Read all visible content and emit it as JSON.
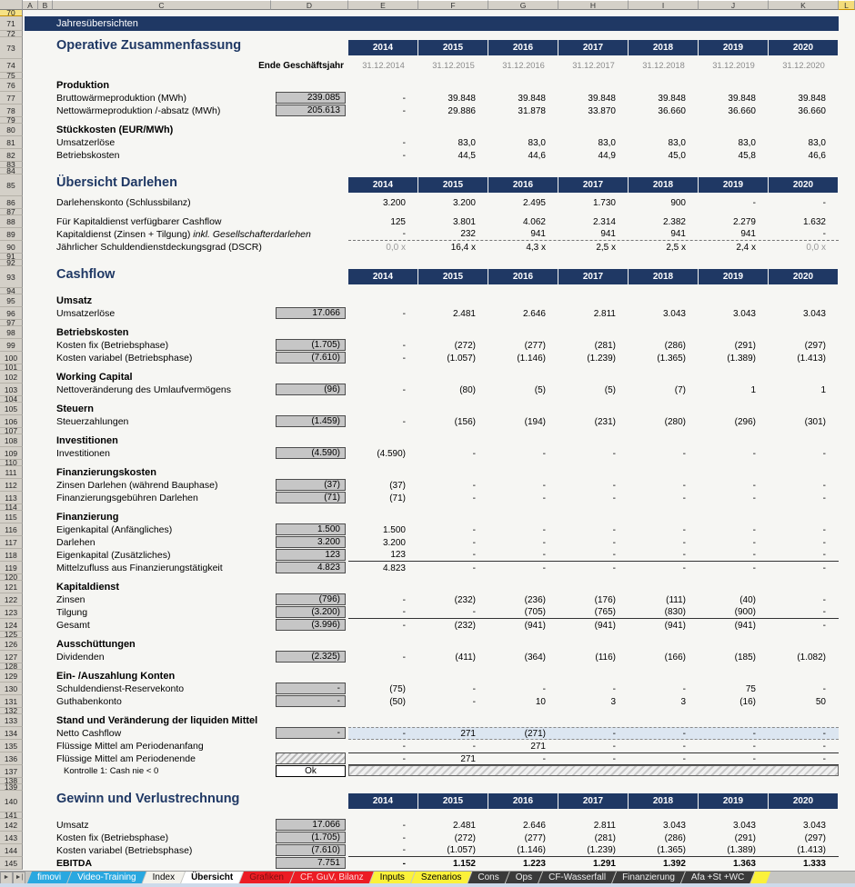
{
  "column_headers": [
    "A",
    "B",
    "C",
    "D",
    "E",
    "F",
    "G",
    "H",
    "I",
    "J",
    "K",
    "L"
  ],
  "selected_column": "L",
  "selected_row": 70,
  "colors": {
    "navy": "#1F3864",
    "box_gray": "#C6C6C6",
    "highlight_blue": "#DCE6F1",
    "tab_blue": "#29A8E0",
    "tab_red": "#EC1C24",
    "tab_yellow": "#FBF13A",
    "tab_dark": "#3A3A3A"
  },
  "sheet": {
    "years": [
      "2014",
      "2015",
      "2016",
      "2017",
      "2018",
      "2019",
      "2020"
    ],
    "dates": [
      "31.12.2014",
      "31.12.2015",
      "31.12.2016",
      "31.12.2017",
      "31.12.2018",
      "31.12.2019",
      "31.12.2020"
    ],
    "rows": [
      {
        "n": 70,
        "t": "spacer"
      },
      {
        "n": 71,
        "t": "banner",
        "label": "Jahresübersichten"
      },
      {
        "n": 72,
        "t": "spacer"
      },
      {
        "n": 73,
        "t": "title",
        "label": "Operative Zusammenfassung",
        "years": true
      },
      {
        "n": 74,
        "t": "dates",
        "label": "Ende Geschäftsjahr"
      },
      {
        "n": 75,
        "t": "spacer"
      },
      {
        "n": 76,
        "t": "sub",
        "label": "Produktion"
      },
      {
        "n": 77,
        "t": "data",
        "label": "Bruttowärmeproduktion (MWh)",
        "box": "239.085",
        "vals": [
          "-",
          "39.848",
          "39.848",
          "39.848",
          "39.848",
          "39.848",
          "39.848"
        ]
      },
      {
        "n": 78,
        "t": "data",
        "label": "Nettowärmeproduktion /-absatz (MWh)",
        "box": "205.613",
        "vals": [
          "-",
          "29.886",
          "31.878",
          "33.870",
          "36.660",
          "36.660",
          "36.660"
        ]
      },
      {
        "n": 79,
        "t": "spacer"
      },
      {
        "n": 80,
        "t": "sub",
        "label": "Stückkosten (EUR/MWh)"
      },
      {
        "n": 81,
        "t": "data",
        "label": "Umsatzerlöse",
        "vals": [
          "-",
          "83,0",
          "83,0",
          "83,0",
          "83,0",
          "83,0",
          "83,0"
        ]
      },
      {
        "n": 82,
        "t": "data",
        "label": "Betriebskosten",
        "vals": [
          "-",
          "44,5",
          "44,6",
          "44,9",
          "45,0",
          "45,8",
          "46,6"
        ]
      },
      {
        "n": 83,
        "t": "spacer"
      },
      {
        "n": 84,
        "t": "spacer"
      },
      {
        "n": 85,
        "t": "title",
        "label": "Übersicht Darlehen",
        "years": true
      },
      {
        "n": 86,
        "t": "data",
        "label": "Darlehenskonto (Schlussbilanz)",
        "vals": [
          "3.200",
          "3.200",
          "2.495",
          "1.730",
          "900",
          "-",
          "-"
        ]
      },
      {
        "n": 87,
        "t": "spacer"
      },
      {
        "n": 88,
        "t": "data",
        "label": "Für Kapitaldienst verfügbarer Cashflow",
        "vals": [
          "125",
          "3.801",
          "4.062",
          "2.314",
          "2.382",
          "2.279",
          "1.632"
        ]
      },
      {
        "n": 89,
        "t": "data",
        "label": "Kapitaldienst (Zinsen + Tilgung) ",
        "label_italic": "inkl. Gesellschafterdarlehen",
        "vals": [
          "-",
          "232",
          "941",
          "941",
          "941",
          "941",
          "-"
        ],
        "cls": "dashed-bottom"
      },
      {
        "n": 90,
        "t": "data",
        "label": "Jährlicher Schuldendienstdeckungsgrad (DSCR)",
        "vals": [
          "0,0 x",
          "16,4 x",
          "4,3 x",
          "2,5 x",
          "2,5 x",
          "2,4 x",
          "0,0 x"
        ],
        "grays": [
          0,
          6
        ]
      },
      {
        "n": 91,
        "t": "spacer"
      },
      {
        "n": 92,
        "t": "spacer"
      },
      {
        "n": 93,
        "t": "title",
        "label": "Cashflow",
        "years": true
      },
      {
        "n": 94,
        "t": "spacer"
      },
      {
        "n": 95,
        "t": "sub",
        "label": "Umsatz"
      },
      {
        "n": 96,
        "t": "data",
        "label": "Umsatzerlöse",
        "box": "17.066",
        "vals": [
          "-",
          "2.481",
          "2.646",
          "2.811",
          "3.043",
          "3.043",
          "3.043"
        ]
      },
      {
        "n": 97,
        "t": "spacer"
      },
      {
        "n": 98,
        "t": "sub",
        "label": "Betriebskosten"
      },
      {
        "n": 99,
        "t": "data",
        "label": "Kosten fix (Betriebsphase)",
        "box": "(1.705)",
        "vals": [
          "-",
          "(272)",
          "(277)",
          "(281)",
          "(286)",
          "(291)",
          "(297)"
        ]
      },
      {
        "n": 100,
        "t": "data",
        "label": "Kosten variabel (Betriebsphase)",
        "box": "(7.610)",
        "vals": [
          "-",
          "(1.057)",
          "(1.146)",
          "(1.239)",
          "(1.365)",
          "(1.389)",
          "(1.413)"
        ]
      },
      {
        "n": 101,
        "t": "spacer"
      },
      {
        "n": 102,
        "t": "sub",
        "label": "Working Capital"
      },
      {
        "n": 103,
        "t": "data",
        "label": "Nettoveränderung des Umlaufvermögens",
        "box": "(96)",
        "vals": [
          "-",
          "(80)",
          "(5)",
          "(5)",
          "(7)",
          "1",
          "1"
        ]
      },
      {
        "n": 104,
        "t": "spacer"
      },
      {
        "n": 105,
        "t": "sub",
        "label": "Steuern"
      },
      {
        "n": 106,
        "t": "data",
        "label": "Steuerzahlungen",
        "box": "(1.459)",
        "vals": [
          "-",
          "(156)",
          "(194)",
          "(231)",
          "(280)",
          "(296)",
          "(301)"
        ]
      },
      {
        "n": 107,
        "t": "spacer"
      },
      {
        "n": 108,
        "t": "sub",
        "label": "Investitionen"
      },
      {
        "n": 109,
        "t": "data",
        "label": "Investitionen",
        "box": "(4.590)",
        "vals": [
          "(4.590)",
          "-",
          "-",
          "-",
          "-",
          "-",
          "-"
        ]
      },
      {
        "n": 110,
        "t": "spacer"
      },
      {
        "n": 111,
        "t": "sub",
        "label": "Finanzierungskosten"
      },
      {
        "n": 112,
        "t": "data",
        "label": "Zinsen Darlehen (während Bauphase)",
        "box": "(37)",
        "vals": [
          "(37)",
          "-",
          "-",
          "-",
          "-",
          "-",
          "-"
        ]
      },
      {
        "n": 113,
        "t": "data",
        "label": "Finanzierungsgebühren Darlehen",
        "box": "(71)",
        "vals": [
          "(71)",
          "-",
          "-",
          "-",
          "-",
          "-",
          "-"
        ]
      },
      {
        "n": 114,
        "t": "spacer"
      },
      {
        "n": 115,
        "t": "sub",
        "label": "Finanzierung"
      },
      {
        "n": 116,
        "t": "data",
        "label": "Eigenkapital (Anfängliches)",
        "box": "1.500",
        "vals": [
          "1.500",
          "-",
          "-",
          "-",
          "-",
          "-",
          "-"
        ]
      },
      {
        "n": 117,
        "t": "data",
        "label": "Darlehen",
        "box": "3.200",
        "vals": [
          "3.200",
          "-",
          "-",
          "-",
          "-",
          "-",
          "-"
        ]
      },
      {
        "n": 118,
        "t": "data",
        "label": "Eigenkapital (Zusätzliches)",
        "box": "123",
        "vals": [
          "123",
          "-",
          "-",
          "-",
          "-",
          "-",
          "-"
        ],
        "cls": "solid-bottom"
      },
      {
        "n": 119,
        "t": "data",
        "label": "Mittelzufluss aus Finanzierungstätigkeit",
        "box": "4.823",
        "vals": [
          "4.823",
          "-",
          "-",
          "-",
          "-",
          "-",
          "-"
        ]
      },
      {
        "n": 120,
        "t": "spacer"
      },
      {
        "n": 121,
        "t": "sub",
        "label": "Kapitaldienst"
      },
      {
        "n": 122,
        "t": "data",
        "label": "Zinsen",
        "box": "(796)",
        "vals": [
          "-",
          "(232)",
          "(236)",
          "(176)",
          "(111)",
          "(40)",
          "-"
        ]
      },
      {
        "n": 123,
        "t": "data",
        "label": "Tilgung",
        "box": "(3.200)",
        "vals": [
          "-",
          "-",
          "(705)",
          "(765)",
          "(830)",
          "(900)",
          "-"
        ],
        "cls": "solid-bottom"
      },
      {
        "n": 124,
        "t": "data",
        "label": " Gesamt",
        "box": "(3.996)",
        "vals": [
          "-",
          "(232)",
          "(941)",
          "(941)",
          "(941)",
          "(941)",
          "-"
        ]
      },
      {
        "n": 125,
        "t": "spacer"
      },
      {
        "n": 126,
        "t": "sub",
        "label": "Ausschüttungen"
      },
      {
        "n": 127,
        "t": "data",
        "label": "Dividenden",
        "box": "(2.325)",
        "vals": [
          "-",
          "(411)",
          "(364)",
          "(116)",
          "(166)",
          "(185)",
          "(1.082)"
        ]
      },
      {
        "n": 128,
        "t": "spacer"
      },
      {
        "n": 129,
        "t": "sub",
        "label": "Ein- /Auszahlung Konten"
      },
      {
        "n": 130,
        "t": "data",
        "label": "Schuldendienst-Reservekonto",
        "box": "-",
        "vals": [
          "(75)",
          "-",
          "-",
          "-",
          "-",
          "75",
          "-"
        ]
      },
      {
        "n": 131,
        "t": "data",
        "label": "Guthabenkonto",
        "box": "-",
        "vals": [
          "(50)",
          "-",
          "10",
          "3",
          "3",
          "(16)",
          "50"
        ]
      },
      {
        "n": 132,
        "t": "spacer"
      },
      {
        "n": 133,
        "t": "sub",
        "label": "Stand und Veränderung der liquiden Mittel"
      },
      {
        "n": 134,
        "t": "data",
        "label": "Netto Cashflow",
        "box": "-",
        "vals": [
          "-",
          "271",
          "(271)",
          "-",
          "-",
          "-",
          "-"
        ],
        "cls": "nettocf"
      },
      {
        "n": 135,
        "t": "data",
        "label": "Flüssige Mittel am Periodenanfang",
        "vals": [
          "-",
          "-",
          "271",
          "-",
          "-",
          "-",
          "-"
        ]
      },
      {
        "n": 136,
        "t": "data",
        "label": "Flüssige Mittel am Periodenende",
        "box_hatch": true,
        "vals": [
          "-",
          "271",
          "-",
          "-",
          "-",
          "-",
          "-"
        ],
        "cls": "solid-top solid-bottom"
      },
      {
        "n": 137,
        "t": "control",
        "label": "Kontrolle 1: Cash nie < 0",
        "box": "Ok"
      },
      {
        "n": 138,
        "t": "spacer"
      },
      {
        "n": 139,
        "t": "spacer"
      },
      {
        "n": 140,
        "t": "title",
        "label": "Gewinn und Verlustrechnung",
        "years": true
      },
      {
        "n": 141,
        "t": "spacer"
      },
      {
        "n": 142,
        "t": "data",
        "label": "Umsatz",
        "box": "17.066",
        "vals": [
          "-",
          "2.481",
          "2.646",
          "2.811",
          "3.043",
          "3.043",
          "3.043"
        ]
      },
      {
        "n": 143,
        "t": "data",
        "label": "Kosten fix (Betriebsphase)",
        "box": "(1.705)",
        "vals": [
          "-",
          "(272)",
          "(277)",
          "(281)",
          "(286)",
          "(291)",
          "(297)"
        ]
      },
      {
        "n": 144,
        "t": "data",
        "label": "Kosten variabel (Betriebsphase)",
        "box": "(7.610)",
        "vals": [
          "-",
          "(1.057)",
          "(1.146)",
          "(1.239)",
          "(1.365)",
          "(1.389)",
          "(1.413)"
        ],
        "cls": "solid-bottom"
      },
      {
        "n": 145,
        "t": "data",
        "label": "EBITDA",
        "box": "7.751",
        "vals": [
          "-",
          "1.152",
          "1.223",
          "1.291",
          "1.392",
          "1.363",
          "1.333"
        ],
        "cls": "bold"
      }
    ]
  },
  "tabs": {
    "nav": [
      "►",
      "►|"
    ],
    "items": [
      {
        "label": "fimovi",
        "color": "blue"
      },
      {
        "label": "Video-Training",
        "color": "blue"
      },
      {
        "label": "Index",
        "color": "light"
      },
      {
        "label": "Übersicht",
        "color": "active"
      },
      {
        "label": "Grafiken",
        "color": "red",
        "text": "dark"
      },
      {
        "label": "CF, GuV, Bilanz",
        "color": "red",
        "text": "light"
      },
      {
        "label": "Inputs",
        "color": "yellow"
      },
      {
        "label": "Szenarios",
        "color": "yellow"
      },
      {
        "label": "Cons",
        "color": "dark"
      },
      {
        "label": "Ops",
        "color": "dark"
      },
      {
        "label": "CF-Wasserfall",
        "color": "dark"
      },
      {
        "label": "Finanzierung",
        "color": "dark"
      },
      {
        "label": "Afa +St +WC",
        "color": "dark"
      },
      {
        "label": "",
        "color": "yellow"
      }
    ]
  }
}
